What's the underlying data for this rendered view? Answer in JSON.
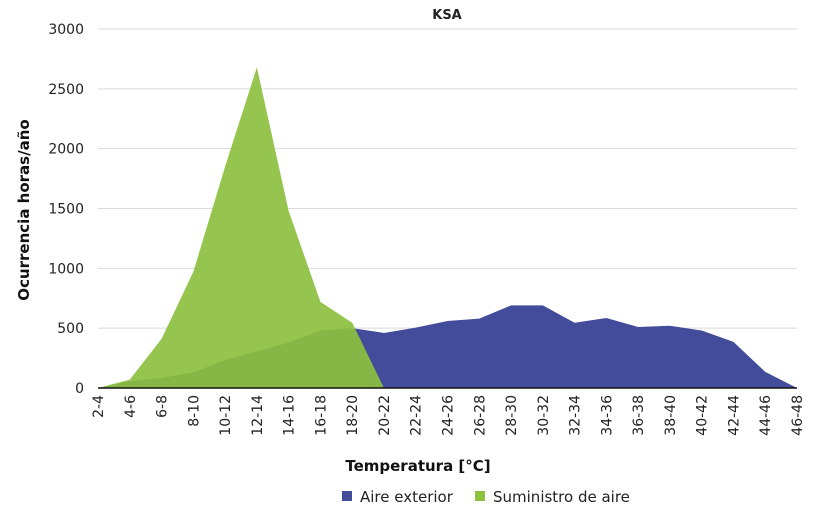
{
  "chart_data": {
    "type": "area",
    "title": "KSA",
    "xlabel": "Temperatura [°C]",
    "ylabel": "Ocurrencia horas/año",
    "ylim": [
      0,
      3000
    ],
    "yticks": [
      0,
      500,
      1000,
      1500,
      2000,
      2500,
      3000
    ],
    "grid": true,
    "legend_position": "bottom",
    "categories": [
      "2-4",
      "4-6",
      "6-8",
      "8-10",
      "10-12",
      "12-14",
      "14-16",
      "16-18",
      "18-20",
      "20-22",
      "22-24",
      "24-26",
      "26-28",
      "28-30",
      "30-32",
      "32-34",
      "34-36",
      "36-38",
      "38-40",
      "40-42",
      "42-44",
      "44-46",
      "46-48"
    ],
    "series": [
      {
        "name": "Aire exterior",
        "color": "#434c9a",
        "values": [
          0,
          55,
          85,
          130,
          235,
          305,
          380,
          480,
          500,
          460,
          505,
          560,
          580,
          690,
          690,
          545,
          585,
          510,
          520,
          480,
          385,
          135,
          0
        ]
      },
      {
        "name": "Suministro de aire",
        "color": "#8cc03f",
        "values": [
          0,
          70,
          410,
          970,
          1850,
          2680,
          1480,
          720,
          545,
          0,
          null,
          null,
          null,
          null,
          null,
          null,
          null,
          null,
          null,
          null,
          null,
          null,
          null
        ]
      }
    ]
  }
}
